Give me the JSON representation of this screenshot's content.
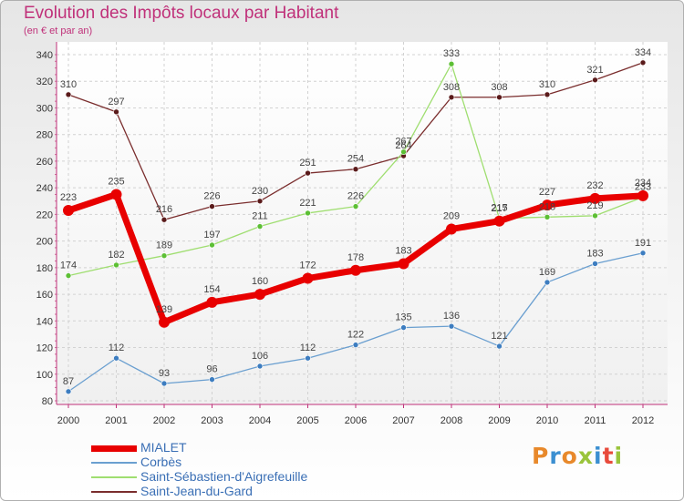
{
  "header": {
    "title": "Evolution des Impôts locaux par Habitant",
    "subtitle": "(en € et par an)"
  },
  "logo": {
    "text": "Proxiti",
    "colors": [
      "#e8892b",
      "#3b8fd1",
      "#e8892b",
      "#9ac43b",
      "#3b8fd1",
      "#e84a3b",
      "#9ac43b"
    ]
  },
  "chart_data": {
    "type": "line",
    "title": "Evolution des Impôts locaux par Habitant",
    "subtitle": "(en € et par an)",
    "xlabel": "",
    "ylabel": "",
    "x": [
      "2000",
      "2001",
      "2002",
      "2003",
      "2004",
      "2005",
      "2006",
      "2007",
      "2008",
      "2009",
      "2010",
      "2011",
      "2012"
    ],
    "ylim": [
      80,
      340
    ],
    "yticks": [
      80,
      100,
      120,
      140,
      160,
      180,
      200,
      220,
      240,
      260,
      280,
      300,
      320,
      340
    ],
    "grid": true,
    "legend_position": "bottom-left",
    "series": [
      {
        "name": "Saint-Jean-du-Gard",
        "color": "#7a2d2d",
        "point_color": "#5a1a1a",
        "width": 1.3,
        "radius": 3,
        "values": [
          310,
          297,
          216,
          226,
          230,
          251,
          254,
          264,
          308,
          308,
          310,
          321,
          334
        ]
      },
      {
        "name": "Saint-Sébastien-d'Aigrefeuille",
        "color": "#9fde70",
        "point_color": "#5cbf34",
        "width": 1.3,
        "radius": 3,
        "values": [
          174,
          182,
          189,
          197,
          211,
          221,
          226,
          267,
          333,
          217,
          218,
          219,
          233
        ]
      },
      {
        "name": "Corbès",
        "color": "#6a9fd0",
        "point_color": "#3d7dc0",
        "width": 1.3,
        "radius": 3,
        "values": [
          87,
          112,
          93,
          96,
          106,
          112,
          122,
          135,
          136,
          121,
          169,
          183,
          191
        ]
      },
      {
        "name": "MIALET",
        "color": "#e80000",
        "point_color": "#e80000",
        "width": 7,
        "radius": 6,
        "values": [
          223,
          235,
          139,
          154,
          160,
          172,
          178,
          183,
          209,
          215,
          227,
          232,
          234
        ]
      }
    ]
  }
}
